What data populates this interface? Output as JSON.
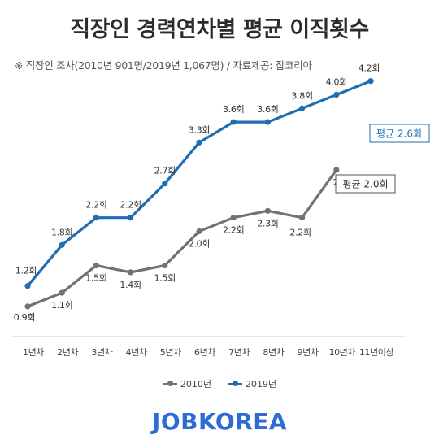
{
  "title": "직장인 경력연차별 평균 이직횟수",
  "subtitle": "※ 직장인 조사(2010년 901명/2019년 1,067명) / 자료제공: 잡코리아",
  "logo": "JOBKOREA",
  "chart_data": {
    "type": "line",
    "categories": [
      "1년차",
      "2년차",
      "3년차",
      "4년차",
      "5년차",
      "6년차",
      "7년차",
      "8년차",
      "9년차",
      "10년차",
      "11년이상"
    ],
    "series": [
      {
        "name": "2010년",
        "color": "#767171",
        "values": [
          0.9,
          1.1,
          1.5,
          1.4,
          1.5,
          2.0,
          2.2,
          2.3,
          2.2,
          2.9,
          null
        ],
        "labels": [
          "0.9회",
          "1.1회",
          "1.5회",
          "1.4회",
          "1.5회",
          "2.0회",
          "2.2회",
          "2.3회",
          "2.2회",
          "2.9회",
          ""
        ]
      },
      {
        "name": "2019년",
        "color": "#1f6db2",
        "values": [
          1.2,
          1.8,
          2.2,
          2.2,
          2.7,
          3.3,
          3.6,
          3.6,
          3.8,
          4.0,
          4.2
        ],
        "labels": [
          "1.2회",
          "1.8회",
          "2.2회",
          "2.2회",
          "2.7회",
          "3.3회",
          "3.6회",
          "3.6회",
          "3.8회",
          "4.0회",
          "4.2회"
        ]
      }
    ],
    "annotations": {
      "avg_2019": "평균 2.6회",
      "avg_2010": "평균 2.0회"
    },
    "legend": [
      "2010년",
      "2019년"
    ],
    "legend_position": "bottom",
    "grid": false
  }
}
